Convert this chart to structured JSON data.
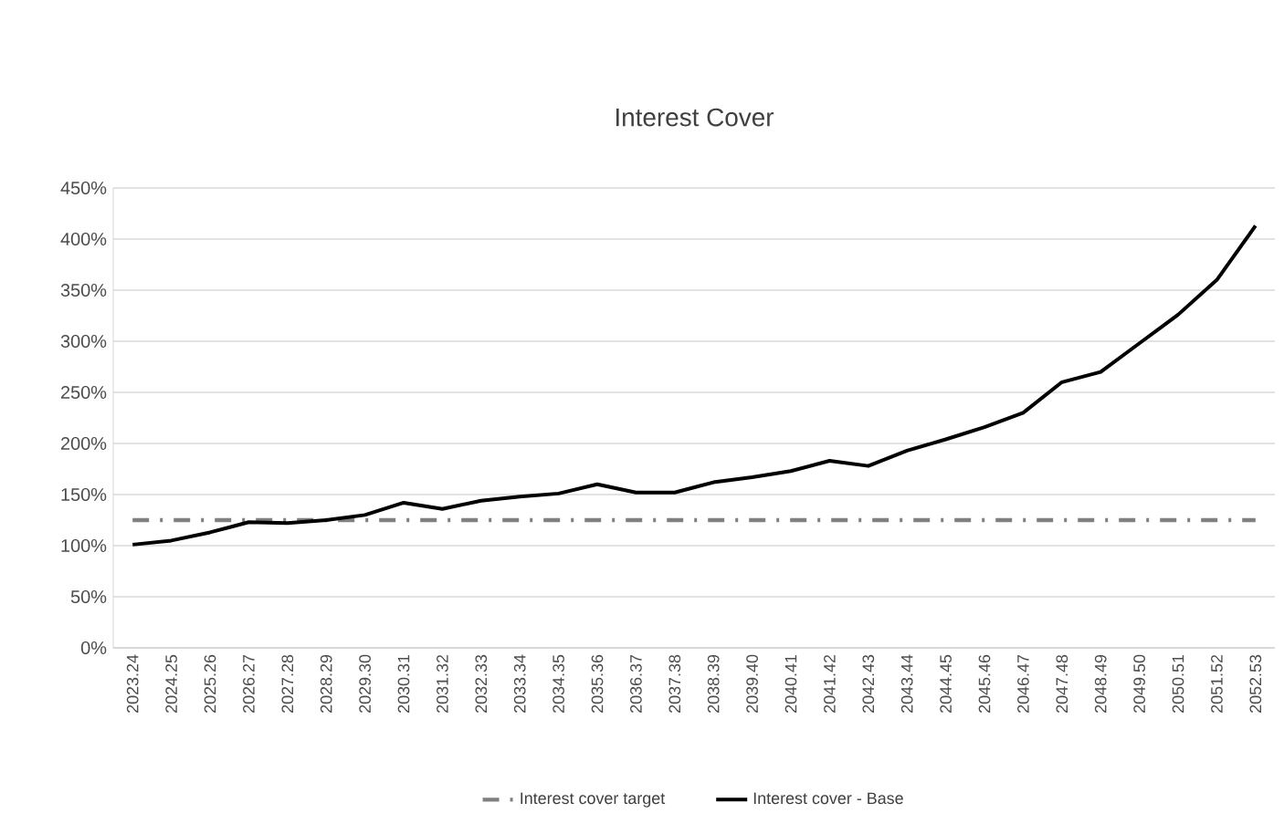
{
  "chart_data": {
    "type": "line",
    "title": "Interest Cover",
    "categories": [
      "2023.24",
      "2024.25",
      "2025.26",
      "2026.27",
      "2027.28",
      "2028.29",
      "2029.30",
      "2030.31",
      "2031.32",
      "2032.33",
      "2033.34",
      "2034.35",
      "2035.36",
      "2036.37",
      "2037.38",
      "2038.39",
      "2039.40",
      "2040.41",
      "2041.42",
      "2042.43",
      "2043.44",
      "2044.45",
      "2045.46",
      "2046.47",
      "2047.48",
      "2048.49",
      "2049.50",
      "2050.51",
      "2051.52",
      "2052.53"
    ],
    "series": [
      {
        "name": "Interest cover target",
        "color": "#808080",
        "line_style": "dashed",
        "values": [
          125,
          125,
          125,
          125,
          125,
          125,
          125,
          125,
          125,
          125,
          125,
          125,
          125,
          125,
          125,
          125,
          125,
          125,
          125,
          125,
          125,
          125,
          125,
          125,
          125,
          125,
          125,
          125,
          125,
          125
        ]
      },
      {
        "name": "Interest cover - Base",
        "color": "#000000",
        "line_style": "solid",
        "values": [
          101,
          105,
          113,
          123,
          122,
          125,
          130,
          142,
          136,
          144,
          148,
          151,
          160,
          152,
          152,
          162,
          167,
          173,
          183,
          178,
          193,
          204,
          216,
          230,
          260,
          270,
          298,
          326,
          360,
          413
        ]
      }
    ],
    "ylim": [
      0,
      450
    ],
    "yticks": [
      {
        "value": 0,
        "label": "0%"
      },
      {
        "value": 50,
        "label": "50%"
      },
      {
        "value": 100,
        "label": "100%"
      },
      {
        "value": 150,
        "label": "150%"
      },
      {
        "value": 200,
        "label": "200%"
      },
      {
        "value": 250,
        "label": "250%"
      },
      {
        "value": 300,
        "label": "300%"
      },
      {
        "value": 350,
        "label": "350%"
      },
      {
        "value": 400,
        "label": "400%"
      },
      {
        "value": 450,
        "label": "450%"
      }
    ],
    "grid": "y",
    "legend": "bottom",
    "marker": "none"
  }
}
